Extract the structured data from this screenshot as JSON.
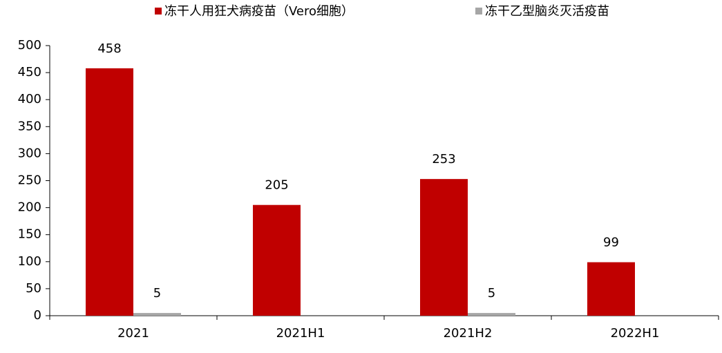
{
  "chart_data": {
    "type": "bar",
    "categories": [
      "2021",
      "2021H1",
      "2021H2",
      "2022H1"
    ],
    "series": [
      {
        "name": "冻干人用狂犬病疫苗（Vero细胞）",
        "color": "#c00000",
        "values": [
          458,
          205,
          253,
          99
        ]
      },
      {
        "name": "冻干乙型脑炎灭活疫苗",
        "color": "#a6a6a6",
        "values": [
          5,
          null,
          5,
          null
        ]
      }
    ],
    "ylim": [
      0,
      500
    ],
    "yticks": [
      0,
      50,
      100,
      150,
      200,
      250,
      300,
      350,
      400,
      450,
      500
    ],
    "legend": "top",
    "data_labels": true
  }
}
